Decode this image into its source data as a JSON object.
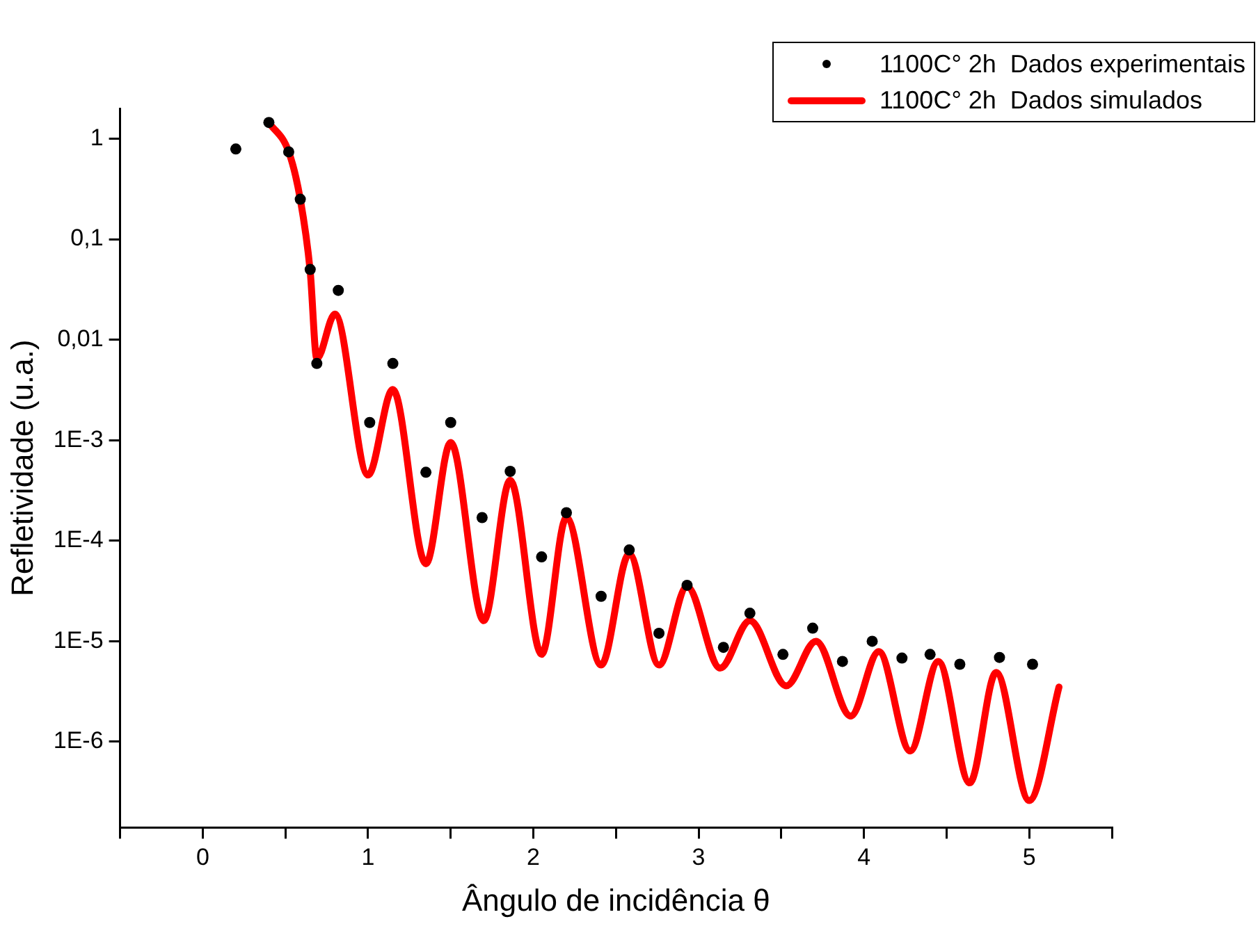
{
  "chart_data": {
    "type": "line",
    "xlabel": "Ângulo de incidência θ",
    "ylabel": "Refletividade (u.a.)",
    "log": "y",
    "grid": false,
    "legend": "top right",
    "xlim": [
      -0.5,
      5.5
    ],
    "xticks": [
      {
        "value": -0.5,
        "label": null
      },
      0,
      {
        "value": 0.5,
        "label": null
      },
      1,
      {
        "value": 1.5,
        "label": null
      },
      2,
      {
        "value": 2.5,
        "label": null
      },
      3,
      {
        "value": 3.5,
        "label": null
      },
      4,
      {
        "value": 4.5,
        "label": null
      },
      5,
      {
        "value": 5.5,
        "label": null
      }
    ],
    "ylim": [
      1.4e-07,
      2
    ],
    "yticks": [
      {
        "value": 1e-06,
        "label": "1E-6"
      },
      {
        "value": 1e-05,
        "label": "1E-5"
      },
      {
        "value": 0.0001,
        "label": "1E-4"
      },
      {
        "value": 0.001,
        "label": "1E-3"
      },
      {
        "value": 0.01,
        "label": "0,01"
      },
      {
        "value": 0.1,
        "label": "0,1"
      },
      1
    ],
    "series": [
      {
        "name": "1100C° 2h  Dados experimentais",
        "type": "scatter",
        "marker": "circle",
        "color": "#000000",
        "x": [
          0.2,
          0.4,
          0.52,
          0.59,
          0.65,
          0.69,
          0.82,
          1.01,
          1.15,
          1.35,
          1.5,
          1.69,
          1.86,
          2.05,
          2.2,
          2.41,
          2.58,
          2.76,
          2.93,
          3.15,
          3.31,
          3.51,
          3.69,
          3.87,
          4.05,
          4.23,
          4.4,
          4.58,
          4.82,
          5.02
        ],
        "values": [
          0.79,
          1.45,
          0.74,
          0.25,
          0.05,
          0.0058,
          0.031,
          0.0015,
          0.0058,
          0.00048,
          0.0015,
          0.00017,
          0.00049,
          6.9e-05,
          0.00019,
          2.8e-05,
          8.1e-05,
          1.2e-05,
          3.6e-05,
          8.7e-06,
          1.9e-05,
          7.4e-06,
          1.35e-05,
          6.3e-06,
          1e-05,
          6.8e-06,
          7.4e-06,
          5.9e-06,
          6.9e-06,
          5.9e-06
        ]
      },
      {
        "name": "1100C° 2h  Dados simulados",
        "type": "line",
        "marker": "none",
        "line_style": "solid",
        "color": "#ff0000",
        "x": [
          0.4,
          0.52,
          0.59,
          0.65,
          0.69,
          0.8,
          1.0,
          1.15,
          1.35,
          1.5,
          1.7,
          1.86,
          2.05,
          2.2,
          2.41,
          2.58,
          2.76,
          2.93,
          3.13,
          3.31,
          3.53,
          3.71,
          3.92,
          4.09,
          4.28,
          4.45,
          4.64,
          4.8,
          5.0,
          5.18
        ],
        "values": [
          1.45,
          0.74,
          0.25,
          0.048,
          0.0065,
          0.018,
          0.00045,
          0.0032,
          5.9e-05,
          0.00095,
          1.6e-05,
          0.0004,
          7.4e-06,
          0.00017,
          5.8e-06,
          7.4e-05,
          5.8e-06,
          3.5e-05,
          5.4e-06,
          1.6e-05,
          3.6e-06,
          1e-05,
          1.8e-06,
          7.9e-06,
          8.1e-07,
          6.3e-06,
          3.9e-07,
          4.9e-06,
          2.6e-07,
          3.5e-06
        ]
      }
    ]
  }
}
